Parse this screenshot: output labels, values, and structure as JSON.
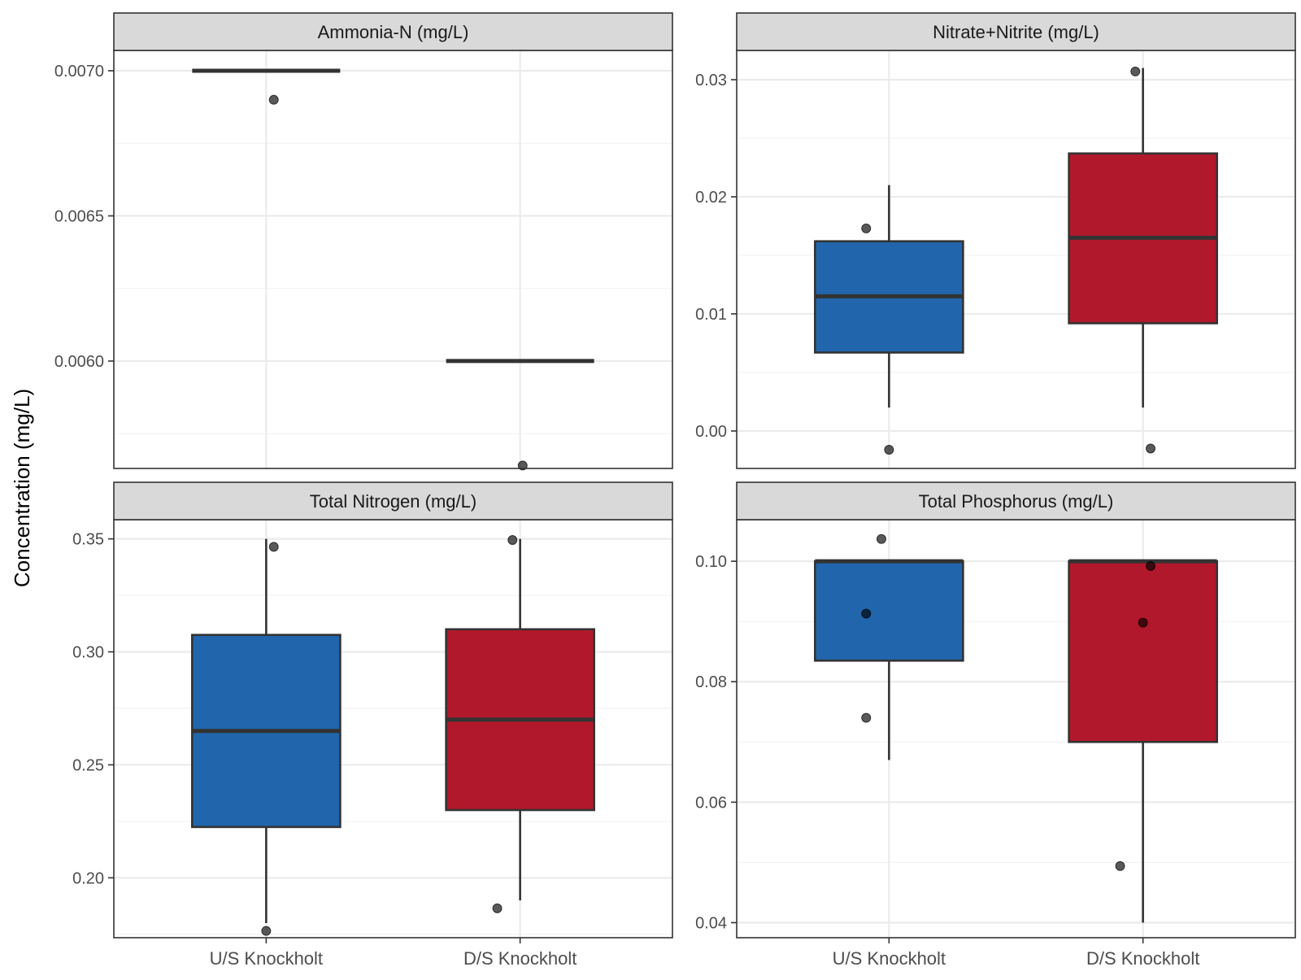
{
  "chart_data": {
    "type": "box",
    "ylabel": "Concentration (mg/L)",
    "categories": [
      "U/S Knockholt",
      "D/S Knockholt"
    ],
    "colors": {
      "U/S Knockholt": "#2166ac",
      "D/S Knockholt": "#b2182b"
    },
    "panels": [
      {
        "title": "Ammonia-N (mg/L)",
        "ylim": [
          0.00563,
          0.00707
        ],
        "yticks": [
          0.006,
          0.0065,
          0.007
        ],
        "ytick_labels": [
          "0.0060",
          "0.0065",
          "0.0070"
        ],
        "show_x_labels": false,
        "boxes": [
          {
            "category": "U/S Knockholt",
            "whisker_low": 0.007,
            "q1": 0.007,
            "median": 0.007,
            "q3": 0.007,
            "whisker_high": 0.007
          },
          {
            "category": "D/S Knockholt",
            "whisker_low": 0.006,
            "q1": 0.006,
            "median": 0.006,
            "q3": 0.006,
            "whisker_high": 0.006
          }
        ],
        "points": [
          {
            "category": "U/S Knockholt",
            "jitter": 0.03,
            "y": 0.0069
          },
          {
            "category": "D/S Knockholt",
            "jitter": 0.01,
            "y": 0.00564
          }
        ]
      },
      {
        "title": "Nitrate+Nitrite (mg/L)",
        "ylim": [
          -0.0032,
          0.0325
        ],
        "yticks": [
          0.0,
          0.01,
          0.02,
          0.03
        ],
        "ytick_labels": [
          "0.00",
          "0.01",
          "0.02",
          "0.03"
        ],
        "show_x_labels": false,
        "boxes": [
          {
            "category": "U/S Knockholt",
            "whisker_low": 0.002,
            "q1": 0.0067,
            "median": 0.0115,
            "q3": 0.0162,
            "whisker_high": 0.021
          },
          {
            "category": "D/S Knockholt",
            "whisker_low": 0.002,
            "q1": 0.0092,
            "median": 0.0165,
            "q3": 0.0237,
            "whisker_high": 0.031
          }
        ],
        "points": [
          {
            "category": "U/S Knockholt",
            "jitter": -0.09,
            "y": 0.0173
          },
          {
            "category": "U/S Knockholt",
            "jitter": 0.0,
            "y": -0.0016
          },
          {
            "category": "D/S Knockholt",
            "jitter": -0.03,
            "y": 0.0307
          },
          {
            "category": "D/S Knockholt",
            "jitter": 0.03,
            "y": -0.0015
          }
        ]
      },
      {
        "title": "Total Nitrogen (mg/L)",
        "ylim": [
          0.1735,
          0.3585
        ],
        "yticks": [
          0.2,
          0.25,
          0.3,
          0.35
        ],
        "ytick_labels": [
          "0.20",
          "0.25",
          "0.30",
          "0.35"
        ],
        "show_x_labels": true,
        "boxes": [
          {
            "category": "U/S Knockholt",
            "whisker_low": 0.18,
            "q1": 0.2225,
            "median": 0.265,
            "q3": 0.3075,
            "whisker_high": 0.35
          },
          {
            "category": "D/S Knockholt",
            "whisker_low": 0.19,
            "q1": 0.23,
            "median": 0.27,
            "q3": 0.31,
            "whisker_high": 0.35
          }
        ],
        "points": [
          {
            "category": "U/S Knockholt",
            "jitter": 0.03,
            "y": 0.3465
          },
          {
            "category": "U/S Knockholt",
            "jitter": 0.0,
            "y": 0.1765
          },
          {
            "category": "D/S Knockholt",
            "jitter": -0.03,
            "y": 0.3495
          },
          {
            "category": "D/S Knockholt",
            "jitter": -0.09,
            "y": 0.1865
          }
        ]
      },
      {
        "title": "Total Phosphorus (mg/L)",
        "ylim": [
          0.0375,
          0.1069
        ],
        "yticks": [
          0.04,
          0.06,
          0.08,
          0.1
        ],
        "ytick_labels": [
          "0.04",
          "0.06",
          "0.08",
          "0.10"
        ],
        "show_x_labels": true,
        "boxes": [
          {
            "category": "U/S Knockholt",
            "whisker_low": 0.067,
            "q1": 0.0835,
            "median": 0.1,
            "q3": 0.1,
            "whisker_high": 0.1
          },
          {
            "category": "D/S Knockholt",
            "whisker_low": 0.04,
            "q1": 0.07,
            "median": 0.1,
            "q3": 0.1,
            "whisker_high": 0.1
          }
        ],
        "points": [
          {
            "category": "U/S Knockholt",
            "jitter": -0.09,
            "y": 0.0913
          },
          {
            "category": "U/S Knockholt",
            "jitter": -0.09,
            "y": 0.074
          },
          {
            "category": "U/S Knockholt",
            "jitter": -0.03,
            "y": 0.1037
          },
          {
            "category": "D/S Knockholt",
            "jitter": 0.03,
            "y": 0.0992
          },
          {
            "category": "D/S Knockholt",
            "jitter": 0.0,
            "y": 0.0898
          },
          {
            "category": "D/S Knockholt",
            "jitter": -0.09,
            "y": 0.0494
          }
        ]
      }
    ]
  }
}
